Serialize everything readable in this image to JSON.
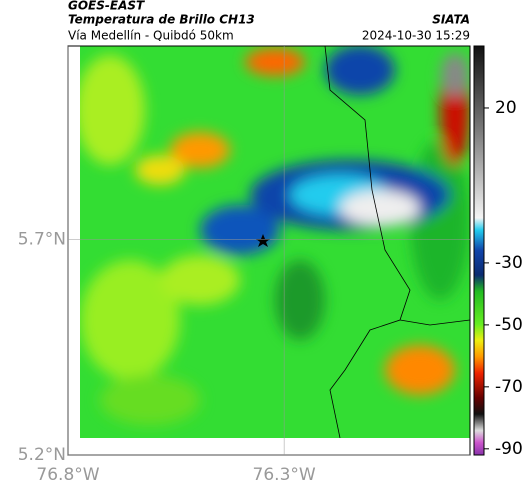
{
  "header": {
    "title": "GOES-EAST",
    "subtitle": "Temperatura de Brillo CH13",
    "source": "SIATA",
    "region": "Vía Medellín - Quibdó 50km",
    "datetime": "2024-10-30 15:29"
  },
  "map": {
    "xlim": [
      -76.8,
      -75.87
    ],
    "ylim": [
      5.2,
      6.15
    ],
    "xticks": [
      {
        "value": -76.8,
        "label": "76.8°W"
      },
      {
        "value": -76.3,
        "label": "76.3°W"
      }
    ],
    "yticks": [
      {
        "value": 5.2,
        "label": "5.2°N"
      },
      {
        "value": 5.7,
        "label": "5.7°N"
      }
    ]
  },
  "colorbar": {
    "lim": [
      -92,
      40
    ],
    "ticks": [
      20,
      -30,
      -50,
      -70,
      -90
    ]
  }
}
